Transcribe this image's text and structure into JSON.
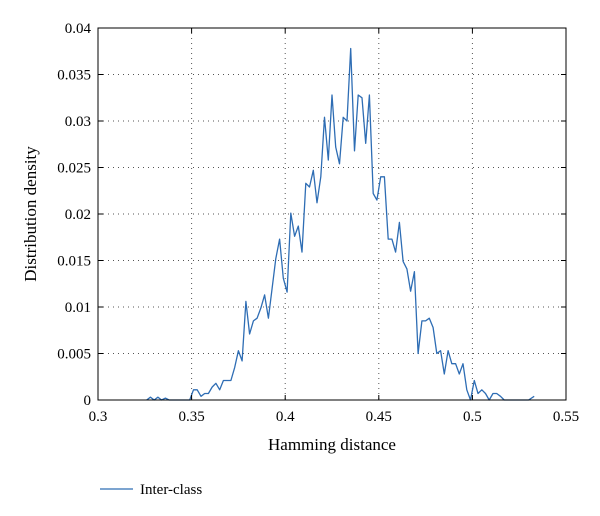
{
  "chart_data": {
    "type": "line",
    "title": "",
    "xlabel": "Hamming distance",
    "ylabel": "Distribution density",
    "xlim": [
      0.3,
      0.55
    ],
    "ylim": [
      0,
      0.04
    ],
    "xticks": [
      "0.3",
      "0.35",
      "0.4",
      "0.45",
      "0.5",
      "0.55"
    ],
    "yticks": [
      "0",
      "0.005",
      "0.01",
      "0.015",
      "0.02",
      "0.025",
      "0.03",
      "0.035",
      "0.04"
    ],
    "grid": true,
    "legend_position": "bottom-left, below plot",
    "series": [
      {
        "name": "Inter-class",
        "color": "#2e6db4",
        "points": [
          [
            0.326,
            0.0
          ],
          [
            0.328,
            0.0003
          ],
          [
            0.33,
            0.0
          ],
          [
            0.332,
            0.0003
          ],
          [
            0.334,
            0.0
          ],
          [
            0.336,
            0.0002
          ],
          [
            0.338,
            0.0
          ],
          [
            0.342,
            0.0
          ],
          [
            0.346,
            0.0
          ],
          [
            0.349,
            0.0
          ],
          [
            0.351,
            0.0011
          ],
          [
            0.353,
            0.0011
          ],
          [
            0.355,
            0.0004
          ],
          [
            0.357,
            0.0007
          ],
          [
            0.359,
            0.0007
          ],
          [
            0.361,
            0.0014
          ],
          [
            0.363,
            0.0018
          ],
          [
            0.365,
            0.0011
          ],
          [
            0.367,
            0.0021
          ],
          [
            0.369,
            0.0021
          ],
          [
            0.371,
            0.0021
          ],
          [
            0.373,
            0.0035
          ],
          [
            0.375,
            0.0053
          ],
          [
            0.377,
            0.0042
          ],
          [
            0.379,
            0.0106
          ],
          [
            0.381,
            0.0071
          ],
          [
            0.383,
            0.0085
          ],
          [
            0.385,
            0.0088
          ],
          [
            0.387,
            0.0099
          ],
          [
            0.389,
            0.0113
          ],
          [
            0.391,
            0.0088
          ],
          [
            0.393,
            0.012
          ],
          [
            0.395,
            0.0152
          ],
          [
            0.397,
            0.0173
          ],
          [
            0.399,
            0.0131
          ],
          [
            0.401,
            0.0116
          ],
          [
            0.403,
            0.0201
          ],
          [
            0.405,
            0.0176
          ],
          [
            0.407,
            0.0187
          ],
          [
            0.409,
            0.0159
          ],
          [
            0.411,
            0.0233
          ],
          [
            0.413,
            0.0229
          ],
          [
            0.415,
            0.0247
          ],
          [
            0.417,
            0.0212
          ],
          [
            0.419,
            0.024
          ],
          [
            0.421,
            0.0304
          ],
          [
            0.423,
            0.0258
          ],
          [
            0.425,
            0.0328
          ],
          [
            0.427,
            0.0272
          ],
          [
            0.429,
            0.0254
          ],
          [
            0.431,
            0.0304
          ],
          [
            0.433,
            0.03
          ],
          [
            0.435,
            0.0378
          ],
          [
            0.437,
            0.0268
          ],
          [
            0.439,
            0.0328
          ],
          [
            0.441,
            0.0325
          ],
          [
            0.443,
            0.0276
          ],
          [
            0.445,
            0.0328
          ],
          [
            0.447,
            0.0222
          ],
          [
            0.449,
            0.0215
          ],
          [
            0.451,
            0.024
          ],
          [
            0.453,
            0.024
          ],
          [
            0.455,
            0.0173
          ],
          [
            0.457,
            0.0173
          ],
          [
            0.459,
            0.0159
          ],
          [
            0.461,
            0.0191
          ],
          [
            0.463,
            0.0149
          ],
          [
            0.465,
            0.0141
          ],
          [
            0.467,
            0.0117
          ],
          [
            0.469,
            0.0138
          ],
          [
            0.471,
            0.005
          ],
          [
            0.473,
            0.0085
          ],
          [
            0.475,
            0.0085
          ],
          [
            0.477,
            0.0088
          ],
          [
            0.479,
            0.0078
          ],
          [
            0.481,
            0.005
          ],
          [
            0.483,
            0.0053
          ],
          [
            0.485,
            0.0028
          ],
          [
            0.487,
            0.0053
          ],
          [
            0.489,
            0.0039
          ],
          [
            0.491,
            0.0039
          ],
          [
            0.493,
            0.0028
          ],
          [
            0.495,
            0.0039
          ],
          [
            0.497,
            0.0011
          ],
          [
            0.499,
            0.0
          ],
          [
            0.501,
            0.0021
          ],
          [
            0.503,
            0.0007
          ],
          [
            0.505,
            0.0011
          ],
          [
            0.507,
            0.0007
          ],
          [
            0.509,
            0.0
          ],
          [
            0.511,
            0.0007
          ],
          [
            0.513,
            0.0007
          ],
          [
            0.515,
            0.0004
          ],
          [
            0.517,
            0.0
          ],
          [
            0.52,
            0.0
          ],
          [
            0.526,
            0.0
          ],
          [
            0.53,
            0.0
          ],
          [
            0.533,
            0.0004
          ]
        ]
      }
    ]
  }
}
